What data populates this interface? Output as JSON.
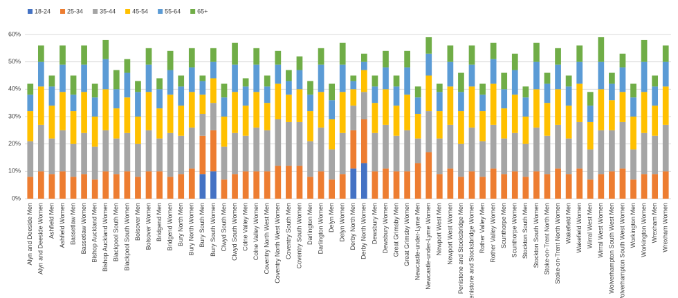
{
  "chart_data": {
    "type": "stacked_bar",
    "categories": [
      "Alyn and Deeside Men",
      "Alyn and Deeside Women",
      "Ashfield Men",
      "Ashfield Women",
      "Bassetlaw Men",
      "Bassetlaw Women",
      "Bishop Auckland Men",
      "Bishop Auckland Women",
      "Blackpool South Men",
      "Blackpool South Women",
      "Bolsover Men",
      "Bolsover Women",
      "Bridgend Men",
      "Bridgend Women",
      "Bury North Men",
      "Bury North Women",
      "Bury South Men",
      "Bury South Women",
      "Clwyd South Men",
      "Clwyd South Women",
      "Colne Valley Men",
      "Colne Valley Women",
      "Coventry North West Men",
      "Coventry North West Women",
      "Coventry South Men",
      "Coventry South Women",
      "Darlington Men",
      "Darlington Women",
      "Delyn Men",
      "Delyn Women",
      "Derby North Men",
      "Derby North Women",
      "Dewsbury Men",
      "Dewsbury Women",
      "Great Grimsby Men",
      "Great Grimsby Women",
      "Newcastle-under-Lyme Men",
      "Newcastle-under-Lyme Women",
      "Newport West Men",
      "Newport West Women",
      "Penistone and Stocksbridge Men",
      "Penistone and Stocksbridge Women",
      "Rother Valley Men",
      "Rother Valley Women",
      "Scunthorpe Men",
      "Scunthorpe Women",
      "Stockton South Men",
      "Stockton South Women",
      "Stoke-on-Trent North Men",
      "Stoke-on-Trent North Women",
      "Wakefield Men",
      "Wakefield Women",
      "Wirral West Men",
      "Wirral West Women",
      "Wolverhampton South West Men",
      "Wolverhampton South West Women",
      "Workington Men",
      "Workington Women",
      "Wrexham Men",
      "Wrexham Women"
    ],
    "series": [
      {
        "name": "18-24",
        "color": "#4472c4",
        "values": [
          0,
          0,
          0,
          0,
          0,
          0,
          0,
          0,
          0,
          0,
          0,
          0,
          0,
          0,
          0,
          0,
          9,
          10,
          0,
          0,
          0,
          0,
          0,
          0,
          0,
          0,
          0,
          0,
          0,
          0,
          11,
          13,
          0,
          0,
          0,
          0,
          0,
          0,
          0,
          0,
          0,
          0,
          0,
          0,
          0,
          0,
          0,
          0,
          0,
          0,
          0,
          0,
          0,
          0,
          0,
          0,
          0,
          0,
          0,
          0
        ]
      },
      {
        "name": "25-34",
        "color": "#ed7d31",
        "values": [
          8,
          10,
          9,
          10,
          8,
          9,
          7,
          10,
          9,
          10,
          8,
          10,
          10,
          8,
          9,
          11,
          14,
          15,
          7,
          9,
          10,
          10,
          10,
          12,
          12,
          12,
          8,
          10,
          7,
          9,
          14,
          16,
          10,
          11,
          10,
          10,
          13,
          17,
          9,
          11,
          8,
          10,
          8,
          11,
          9,
          10,
          8,
          10,
          9,
          11,
          9,
          11,
          7,
          9,
          10,
          11,
          7,
          9,
          9,
          10
        ]
      },
      {
        "name": "35-44",
        "color": "#a5a5a5",
        "values": [
          13,
          17,
          13,
          15,
          12,
          15,
          12,
          15,
          13,
          14,
          12,
          15,
          12,
          16,
          14,
          15,
          8,
          10,
          12,
          15,
          13,
          16,
          15,
          17,
          16,
          16,
          13,
          16,
          11,
          15,
          9,
          10,
          14,
          16,
          13,
          15,
          9,
          15,
          13,
          16,
          12,
          16,
          13,
          16,
          13,
          14,
          12,
          16,
          14,
          16,
          13,
          17,
          11,
          16,
          15,
          17,
          11,
          15,
          14,
          17
        ]
      },
      {
        "name": "45-54",
        "color": "#ffc000",
        "values": [
          11,
          14,
          12,
          14,
          12,
          15,
          11,
          15,
          11,
          13,
          10,
          14,
          11,
          14,
          11,
          13,
          7,
          9,
          11,
          15,
          11,
          13,
          10,
          13,
          10,
          12,
          11,
          13,
          11,
          15,
          6,
          8,
          11,
          13,
          11,
          13,
          9,
          13,
          10,
          14,
          12,
          15,
          11,
          15,
          11,
          14,
          10,
          14,
          12,
          13,
          12,
          14,
          10,
          15,
          11,
          11,
          12,
          15,
          11,
          14
        ]
      },
      {
        "name": "55-64",
        "color": "#5b9bd5",
        "values": [
          6,
          9,
          7,
          10,
          6,
          10,
          7,
          11,
          7,
          9,
          9,
          10,
          7,
          9,
          7,
          9,
          5,
          6,
          7,
          10,
          7,
          10,
          6,
          7,
          5,
          7,
          6,
          10,
          7,
          10,
          3,
          3,
          6,
          8,
          7,
          10,
          6,
          8,
          7,
          9,
          7,
          8,
          6,
          9,
          7,
          9,
          7,
          10,
          7,
          9,
          7,
          8,
          6,
          10,
          6,
          9,
          7,
          11,
          7,
          9
        ]
      },
      {
        "name": "65+",
        "color": "#70ad47",
        "values": [
          4,
          6,
          4,
          7,
          7,
          7,
          5,
          7,
          7,
          5,
          4,
          6,
          4,
          7,
          4,
          7,
          2,
          5,
          5,
          8,
          3,
          6,
          4,
          5,
          4,
          5,
          5,
          6,
          6,
          8,
          2,
          3,
          4,
          6,
          4,
          6,
          4,
          6,
          3,
          6,
          7,
          7,
          4,
          6,
          6,
          6,
          4,
          7,
          4,
          6,
          4,
          6,
          5,
          9,
          4,
          5,
          5,
          8,
          4,
          6
        ]
      }
    ],
    "ylim": [
      0,
      60
    ],
    "yticks": [
      {
        "value": 0,
        "label": "0%"
      },
      {
        "value": 10,
        "label": "10%"
      },
      {
        "value": 20,
        "label": "20%"
      },
      {
        "value": 30,
        "label": "30%"
      },
      {
        "value": 40,
        "label": "40%"
      },
      {
        "value": 50,
        "label": "50%"
      },
      {
        "value": 60,
        "label": "60%"
      }
    ],
    "grid": true,
    "legend": "top-left"
  }
}
